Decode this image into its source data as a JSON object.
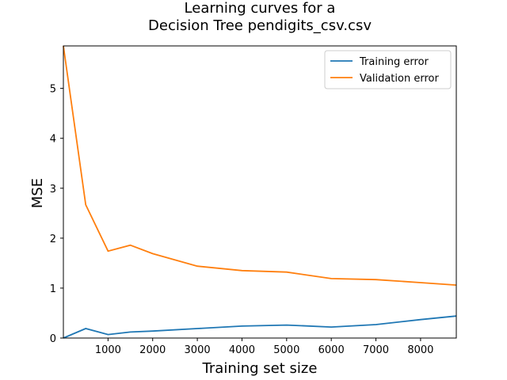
{
  "chart_data": {
    "type": "line",
    "title_lines": [
      "Learning curves for a",
      "Decision Tree pendigits_csv.csv"
    ],
    "xlabel": "Training set size",
    "ylabel": "MSE",
    "xlim": [
      0,
      8800
    ],
    "ylim": [
      0,
      5.85
    ],
    "x_ticks": [
      1000,
      2000,
      3000,
      4000,
      5000,
      6000,
      7000,
      8000
    ],
    "y_ticks": [
      0,
      1,
      2,
      3,
      4,
      5
    ],
    "legend_position": "top-right",
    "grid": false,
    "series": [
      {
        "name": "Training error",
        "color": "#1f77b4",
        "points": [
          [
            0,
            0.0
          ],
          [
            500,
            0.19
          ],
          [
            1000,
            0.07
          ],
          [
            1500,
            0.12
          ],
          [
            2000,
            0.14
          ],
          [
            3000,
            0.19
          ],
          [
            4000,
            0.24
          ],
          [
            5000,
            0.26
          ],
          [
            6000,
            0.22
          ],
          [
            7000,
            0.27
          ],
          [
            8000,
            0.37
          ],
          [
            8800,
            0.44
          ]
        ]
      },
      {
        "name": "Validation error",
        "color": "#ff7f0e",
        "points": [
          [
            0,
            5.85
          ],
          [
            500,
            2.67
          ],
          [
            1000,
            1.74
          ],
          [
            1500,
            1.86
          ],
          [
            2000,
            1.69
          ],
          [
            3000,
            1.44
          ],
          [
            4000,
            1.35
          ],
          [
            5000,
            1.32
          ],
          [
            6000,
            1.19
          ],
          [
            7000,
            1.17
          ],
          [
            8000,
            1.11
          ],
          [
            8800,
            1.06
          ]
        ]
      }
    ]
  }
}
